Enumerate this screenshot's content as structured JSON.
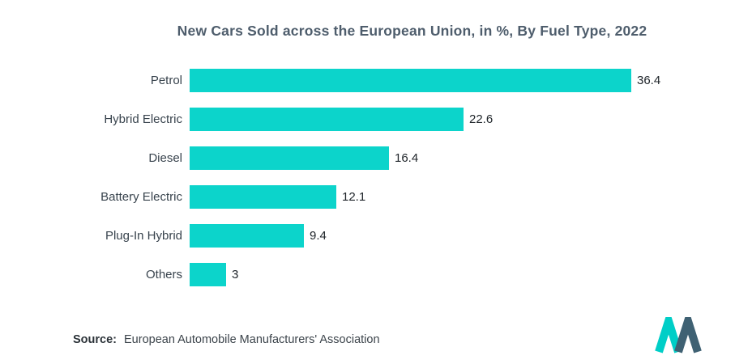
{
  "title": "New Cars Sold across the European Union, in %, By Fuel Type, 2022",
  "source": {
    "label": "Source:",
    "text": "European Automobile Manufacturers' Association"
  },
  "logo": {
    "name": "mordor-intelligence-logo"
  },
  "colors": {
    "bar": "#0cd4cb",
    "title": "#4e5d6c",
    "logo_teal": "#00cec7",
    "logo_blue": "#3f6173"
  },
  "chart_data": {
    "type": "bar",
    "orientation": "horizontal",
    "title": "New Cars Sold across the European Union, in %, By Fuel Type, 2022",
    "categories": [
      "Petrol",
      "Hybrid Electric",
      "Diesel",
      "Battery Electric",
      "Plug-In Hybrid",
      "Others"
    ],
    "values": [
      36.4,
      22.6,
      16.4,
      12.1,
      9.4,
      3
    ],
    "xlabel": "",
    "ylabel": "",
    "xlim": [
      0,
      40
    ],
    "grid": false,
    "legend": false,
    "value_labels": true,
    "bar_color": "#0cd4cb"
  }
}
